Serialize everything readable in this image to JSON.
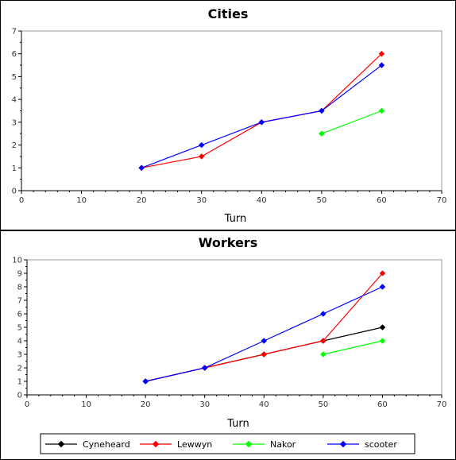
{
  "chart_data": [
    {
      "type": "line",
      "title": "Cities",
      "xlabel": "Turn",
      "ylabel": "",
      "xlim": [
        0,
        70
      ],
      "ylim": [
        0,
        7
      ],
      "xticks": [
        0,
        10,
        20,
        30,
        40,
        50,
        60,
        70
      ],
      "yticks": [
        0,
        1,
        2,
        3,
        4,
        5,
        6,
        7
      ],
      "grid": false,
      "series": [
        {
          "name": "Lewwyn",
          "color": "#ff0000",
          "points": [
            [
              20,
              1
            ],
            [
              30,
              1.5
            ],
            [
              40,
              3
            ],
            [
              50,
              3.5
            ],
            [
              60,
              6
            ]
          ]
        },
        {
          "name": "Nakor",
          "color": "#00ff00",
          "points": [
            [
              50,
              2.5
            ],
            [
              60,
              3.5
            ]
          ]
        },
        {
          "name": "scooter",
          "color": "#0000ff",
          "points": [
            [
              20,
              1
            ],
            [
              30,
              2
            ],
            [
              40,
              3
            ],
            [
              50,
              3.5
            ],
            [
              60,
              5.5
            ]
          ]
        }
      ]
    },
    {
      "type": "line",
      "title": "Workers",
      "xlabel": "Turn",
      "ylabel": "",
      "xlim": [
        0,
        70
      ],
      "ylim": [
        0,
        10
      ],
      "xticks": [
        0,
        10,
        20,
        30,
        40,
        50,
        60,
        70
      ],
      "yticks": [
        0,
        1,
        2,
        3,
        4,
        5,
        6,
        7,
        8,
        9,
        10
      ],
      "grid": false,
      "series": [
        {
          "name": "Cyneheard",
          "color": "#000000",
          "points": [
            [
              20,
              1
            ],
            [
              30,
              2
            ],
            [
              40,
              3
            ],
            [
              50,
              4
            ],
            [
              60,
              5
            ]
          ]
        },
        {
          "name": "Lewwyn",
          "color": "#ff0000",
          "points": [
            [
              20,
              1
            ],
            [
              30,
              2
            ],
            [
              40,
              3
            ],
            [
              50,
              4
            ],
            [
              60,
              9
            ]
          ]
        },
        {
          "name": "Nakor",
          "color": "#00ff00",
          "points": [
            [
              50,
              3
            ],
            [
              60,
              4
            ]
          ]
        },
        {
          "name": "scooter",
          "color": "#0000ff",
          "points": [
            [
              20,
              1
            ],
            [
              30,
              2
            ],
            [
              40,
              4
            ],
            [
              50,
              6
            ],
            [
              60,
              8
            ]
          ]
        }
      ]
    }
  ],
  "legend": {
    "placement": "bottom",
    "entries": [
      {
        "name": "Cyneheard",
        "color": "#000000"
      },
      {
        "name": "Lewwyn",
        "color": "#ff0000"
      },
      {
        "name": "Nakor",
        "color": "#00ff00"
      },
      {
        "name": "scooter",
        "color": "#0000ff"
      }
    ]
  }
}
